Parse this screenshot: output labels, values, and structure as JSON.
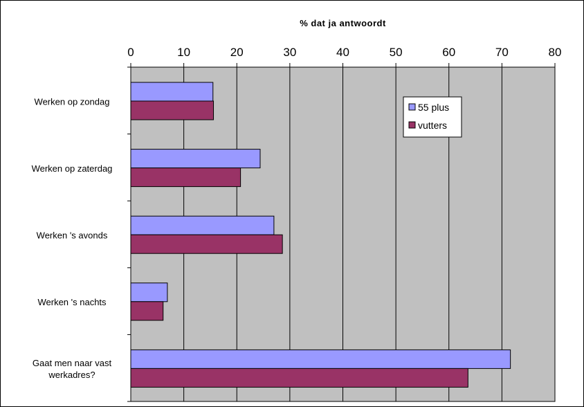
{
  "chart_data": {
    "type": "bar",
    "orientation": "horizontal",
    "title": "% dat ja antwoordt",
    "xlim": [
      0,
      80
    ],
    "x_ticks": [
      "0",
      "10",
      "20",
      "30",
      "40",
      "50",
      "60",
      "70",
      "80"
    ],
    "x_axis_position": "top",
    "grid": true,
    "plot_background": "#c0c0c0",
    "legend_position": "top-right inside plot",
    "categories": [
      "Werken op zondag",
      "Werken op zaterdag",
      "Werken 's avonds",
      "Werken 's nachts",
      "Gaat men naar vast werkadres?"
    ],
    "category_lines": [
      [
        "Werken op zondag"
      ],
      [
        "Werken op zaterdag"
      ],
      [
        "Werken 's avonds"
      ],
      [
        "Werken 's nachts"
      ],
      [
        "Gaat men naar vast",
        "werkadres?"
      ]
    ],
    "series": [
      {
        "name": "55 plus",
        "color": "#9999ff",
        "values": [
          15.5,
          24.4,
          27,
          6.9,
          71.6
        ]
      },
      {
        "name": "vutters",
        "color": "#993366",
        "values": [
          15.6,
          20.7,
          28.6,
          6.1,
          63.6
        ]
      }
    ]
  }
}
